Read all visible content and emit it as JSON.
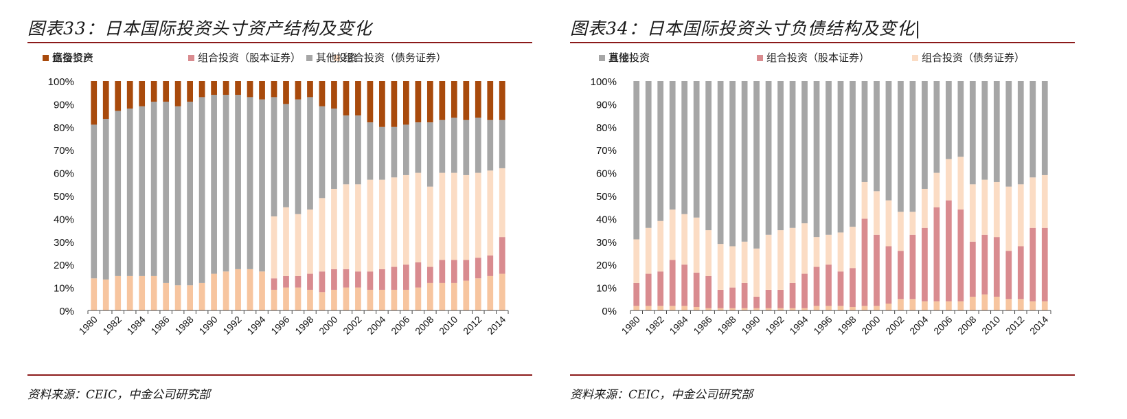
{
  "panels": [
    {
      "title": "图表33：日本国际投资头寸资产结构及变化",
      "source": "资料来源：CEIC，中金公司研究部"
    },
    {
      "title": "图表34：日本国际投资头寸负债结构及变化|",
      "source": "资料来源：CEIC，中金公司研究部"
    }
  ],
  "colors": {
    "direct": "#f7c59f",
    "equity": "#d98b8f",
    "debt": "#fbdcc4",
    "other": "#a6a6a6",
    "reserve": "#a84a0c"
  },
  "chart_data": [
    {
      "type": "bar",
      "stacked": true,
      "title": "图表33：日本国际投资头寸资产结构及变化",
      "xlabel": "",
      "ylabel": "",
      "ylim": [
        0,
        100
      ],
      "y_ticks": [
        "0%",
        "10%",
        "20%",
        "30%",
        "40%",
        "50%",
        "60%",
        "70%",
        "80%",
        "90%",
        "100%"
      ],
      "legend_position": "top",
      "categories": [
        "1980",
        "1981",
        "1982",
        "1983",
        "1984",
        "1985",
        "1986",
        "1987",
        "1988",
        "1989",
        "1990",
        "1991",
        "1992",
        "1993",
        "1994",
        "1995",
        "1996",
        "1997",
        "1998",
        "1999",
        "2000",
        "2001",
        "2002",
        "2003",
        "2004",
        "2005",
        "2006",
        "2007",
        "2008",
        "2009",
        "2010",
        "2011",
        "2012",
        "2013",
        "2014"
      ],
      "x_tick_labels": [
        "1980",
        "1982",
        "1984",
        "1986",
        "1988",
        "1990",
        "1992",
        "1994",
        "1996",
        "1998",
        "2000",
        "2002",
        "2004",
        "2006",
        "2008",
        "2010",
        "2012",
        "2014"
      ],
      "series": [
        {
          "name": "直接投资",
          "color_key": "direct",
          "values": [
            14,
            13.5,
            15,
            15,
            15,
            15,
            12,
            11,
            11,
            12,
            16,
            17,
            18,
            18,
            17,
            9,
            10,
            10,
            9,
            8,
            9,
            10,
            10,
            9,
            9,
            9,
            9,
            10,
            12,
            12,
            12,
            13,
            14,
            15,
            16
          ]
        },
        {
          "name": "组合投资（股本证券）",
          "color_key": "equity",
          "values": [
            0,
            0,
            0,
            0,
            0,
            0,
            0,
            0,
            0,
            0,
            0,
            0,
            0,
            0,
            0,
            5,
            5,
            5,
            7,
            9,
            9,
            8,
            7,
            8,
            9,
            10,
            11,
            11,
            7,
            10,
            10,
            9,
            9,
            9,
            16
          ]
        },
        {
          "name": "组合投资（债务证券）",
          "color_key": "debt",
          "values": [
            0,
            0,
            0,
            0,
            0,
            0,
            0,
            0,
            0,
            0,
            0,
            0,
            0,
            0,
            0,
            27,
            30,
            27,
            28,
            32,
            35,
            37,
            38,
            40,
            39,
            39,
            39,
            39,
            35,
            38,
            38,
            37,
            37,
            37,
            30
          ]
        },
        {
          "name": "其他投资",
          "color_key": "other",
          "values": [
            67,
            70,
            72,
            73,
            74,
            76,
            79,
            78,
            80,
            81,
            78,
            77,
            76,
            75,
            75,
            52,
            45,
            50,
            49,
            40,
            35,
            30,
            30,
            25,
            23,
            22,
            22,
            22,
            28,
            23,
            24,
            24,
            24,
            22,
            21
          ]
        },
        {
          "name": "储备资产",
          "color_key": "reserve",
          "values": [
            19,
            16.5,
            13,
            12,
            11,
            9,
            9,
            11,
            9,
            7,
            6,
            6,
            6,
            7,
            8,
            7,
            10,
            8,
            7,
            11,
            12,
            15,
            15,
            18,
            20,
            20,
            19,
            18,
            18,
            17,
            16,
            17,
            16,
            17,
            17
          ]
        }
      ]
    },
    {
      "type": "bar",
      "stacked": true,
      "title": "图表34：日本国际投资头寸负债结构及变化",
      "xlabel": "",
      "ylabel": "",
      "ylim": [
        0,
        100
      ],
      "y_ticks": [
        "0%",
        "10%",
        "20%",
        "30%",
        "40%",
        "50%",
        "60%",
        "70%",
        "80%",
        "90%",
        "100%"
      ],
      "legend_position": "top",
      "categories": [
        "1980",
        "1981",
        "1982",
        "1983",
        "1984",
        "1985",
        "1986",
        "1987",
        "1988",
        "1989",
        "1990",
        "1991",
        "1992",
        "1993",
        "1994",
        "1995",
        "1996",
        "1997",
        "1998",
        "1999",
        "2000",
        "2001",
        "2002",
        "2003",
        "2004",
        "2005",
        "2006",
        "2007",
        "2008",
        "2009",
        "2010",
        "2011",
        "2012",
        "2013",
        "2014"
      ],
      "x_tick_labels": [
        "1980",
        "1982",
        "1984",
        "1986",
        "1988",
        "1990",
        "1992",
        "1994",
        "1996",
        "1998",
        "2000",
        "2002",
        "2004",
        "2006",
        "2008",
        "2010",
        "2012",
        "2014"
      ],
      "series": [
        {
          "name": "直接投资",
          "color_key": "direct",
          "values": [
            2,
            2,
            2,
            2,
            2,
            1.5,
            1,
            1,
            1,
            1,
            1,
            1,
            1,
            1,
            1,
            2,
            2,
            2,
            1.5,
            2,
            2,
            3,
            5,
            5,
            4,
            4,
            4,
            4,
            6,
            7,
            6,
            5,
            5,
            4,
            4
          ]
        },
        {
          "name": "组合投资（股本证券）",
          "color_key": "equity",
          "values": [
            10,
            14,
            15,
            20,
            18,
            15,
            14,
            8,
            9,
            11,
            5,
            8,
            8,
            11,
            15,
            17,
            18,
            15,
            17,
            38,
            31,
            25,
            21,
            28,
            32,
            41,
            44,
            40,
            24,
            26,
            26,
            21,
            23,
            32,
            32
          ]
        },
        {
          "name": "组合投资（债务证券）",
          "color_key": "debt",
          "values": [
            19,
            20,
            22,
            22,
            22,
            24,
            20,
            20,
            18,
            18,
            21,
            24,
            26,
            24,
            22,
            13,
            13,
            17,
            18,
            16,
            19,
            20,
            17,
            10,
            17,
            15,
            18,
            23,
            25,
            24,
            24,
            28,
            27,
            22,
            23
          ]
        },
        {
          "name": "其他投资",
          "color_key": "other",
          "values": [
            69,
            64,
            61,
            56,
            58,
            59.5,
            65,
            71,
            72,
            70,
            73,
            67,
            65,
            64,
            62,
            68,
            67,
            66,
            63.5,
            44,
            48,
            52,
            57,
            57,
            47,
            40,
            34,
            33,
            45,
            43,
            44,
            46,
            45,
            42,
            41
          ]
        }
      ]
    }
  ]
}
